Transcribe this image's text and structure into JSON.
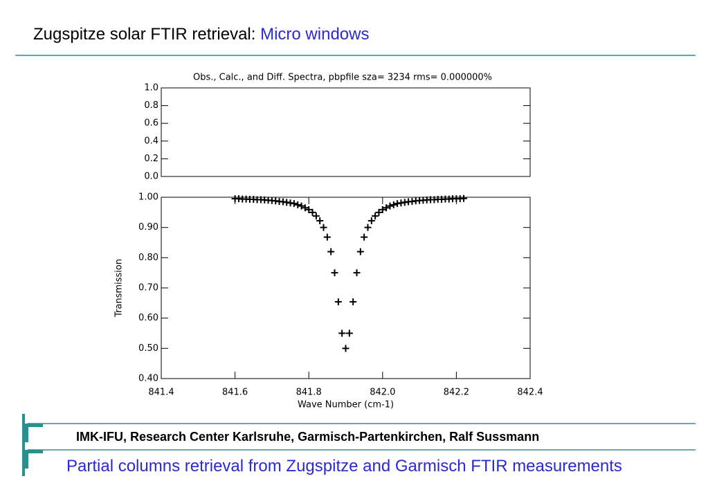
{
  "header": {
    "title": "Zugspitze solar FTIR retrieval:",
    "title_highlight": "Micro windows"
  },
  "footer": {
    "institution": "IMK-IFU, Research Center Karlsruhe, Garmisch-Partenkirchen, Ralf Sussmann",
    "subtitle": "Partial columns retrieval from Zugspitze and Garmisch FTIR measurements"
  },
  "chart_data": [
    {
      "type": "line",
      "title": "Obs., Calc., and Diff. Spectra, pbpfile sza= 3234 rms= 0.000000%",
      "ylim": [
        0,
        1
      ],
      "yticks": [
        {
          "value": 1,
          "label": "1.0"
        },
        {
          "value": 0.8,
          "label": "0.8"
        },
        {
          "value": 0.6,
          "label": "0.6"
        },
        {
          "value": 0.4,
          "label": "0.4"
        },
        {
          "value": 0.2,
          "label": "0.2"
        },
        {
          "value": 0,
          "label": "0.0"
        }
      ]
    },
    {
      "type": "scatter",
      "ylabel": "Transmission",
      "xlabel": "Wave Number (cm-1)",
      "color": "#000000",
      "marker": "plus",
      "xlim": [
        841.4,
        842.4
      ],
      "xticks": [
        841.4,
        841.6,
        841.8,
        {
          "value": 842,
          "label": "842.0"
        },
        842.2,
        842.4
      ],
      "ylim": [
        0.4,
        1.0
      ],
      "yticks": [
        {
          "value": 1,
          "label": "1.00"
        },
        {
          "value": 0.9,
          "label": "0.90"
        },
        {
          "value": 0.8,
          "label": "0.80"
        },
        {
          "value": 0.7,
          "label": "0.70"
        },
        {
          "value": 0.6,
          "label": "0.60"
        },
        {
          "value": 0.5,
          "label": "0.50"
        },
        {
          "value": 0.4,
          "label": "0.40"
        }
      ],
      "x": [
        841.6,
        841.61,
        841.62,
        841.63,
        841.64,
        841.65,
        841.66,
        841.67,
        841.68,
        841.69,
        841.7,
        841.71,
        841.72,
        841.73,
        841.74,
        841.75,
        841.76,
        841.77,
        841.78,
        841.79,
        841.8,
        841.81,
        841.82,
        841.83,
        841.84,
        841.85,
        841.86,
        841.87,
        841.88,
        841.89,
        841.9,
        841.91,
        841.92,
        841.93,
        841.94,
        841.95,
        841.96,
        841.97,
        841.98,
        841.99,
        842,
        842.01,
        842.02,
        842.03,
        842.04,
        842.05,
        842.06,
        842.07,
        842.08,
        842.09,
        842.1,
        842.11,
        842.12,
        842.13,
        842.14,
        842.15,
        842.16,
        842.17,
        842.18,
        842.19,
        842.2,
        842.21,
        842.22
      ],
      "values": [
        0.995,
        0.995,
        0.994,
        0.994,
        0.993,
        0.993,
        0.992,
        0.992,
        0.991,
        0.99,
        0.989,
        0.988,
        0.986,
        0.985,
        0.983,
        0.981,
        0.979,
        0.975,
        0.971,
        0.965,
        0.959,
        0.95,
        0.938,
        0.922,
        0.9,
        0.868,
        0.82,
        0.75,
        0.654,
        0.55,
        0.5,
        0.55,
        0.654,
        0.75,
        0.82,
        0.868,
        0.9,
        0.922,
        0.938,
        0.95,
        0.959,
        0.965,
        0.971,
        0.975,
        0.979,
        0.981,
        0.983,
        0.985,
        0.986,
        0.988,
        0.989,
        0.99,
        0.991,
        0.992,
        0.992,
        0.993,
        0.993,
        0.994,
        0.994,
        0.995,
        0.995,
        0.995,
        0.996
      ]
    }
  ]
}
